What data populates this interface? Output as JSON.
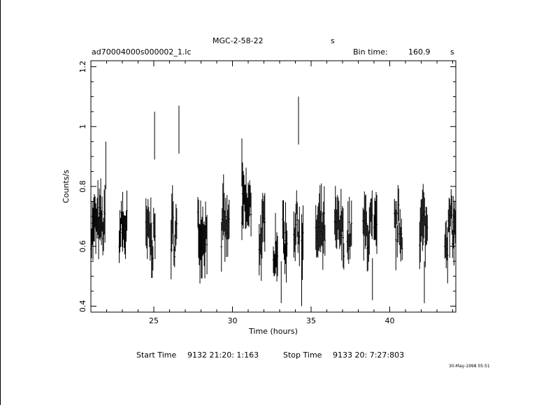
{
  "header": {
    "source_name": "MGC-2-58-22",
    "source_suffix": "s",
    "file_name": "ad70004000s000002_1.lc",
    "bin_time_label": "Bin time:",
    "bin_time_value": "160.9",
    "bin_time_unit": "s"
  },
  "footer": {
    "start_label": "Start Time",
    "start_value": "9132 21:20: 1:163",
    "stop_label": "Stop Time",
    "stop_value": "9133 20: 7:27:803",
    "date_stamp": "30-May-1998 05:51"
  },
  "chart_data": {
    "type": "scatter",
    "xlabel": "Time (hours)",
    "ylabel": "Counts/s",
    "xlim": [
      21.0,
      44.2
    ],
    "ylim": [
      0.38,
      1.22
    ],
    "xticks": [
      25,
      30,
      35,
      40
    ],
    "yticks": [
      0.4,
      0.6,
      0.8,
      1,
      1.2
    ],
    "grid": false,
    "error_bars": true,
    "segments": [
      [
        21.0,
        21.9,
        0.66
      ],
      [
        22.8,
        23.3,
        0.66
      ],
      [
        24.5,
        25.1,
        0.63
      ],
      [
        26.1,
        26.5,
        0.64
      ],
      [
        27.8,
        28.4,
        0.66
      ],
      [
        29.3,
        29.8,
        0.65
      ],
      [
        30.6,
        31.2,
        0.72
      ],
      [
        31.7,
        32.1,
        0.63
      ],
      [
        32.6,
        32.9,
        0.62
      ],
      [
        33.2,
        33.5,
        0.62
      ],
      [
        33.9,
        34.3,
        0.68
      ],
      [
        34.4,
        34.5,
        0.58
      ],
      [
        35.3,
        35.9,
        0.64
      ],
      [
        36.5,
        37.1,
        0.64
      ],
      [
        37.3,
        37.6,
        0.63
      ],
      [
        38.3,
        38.9,
        0.65
      ],
      [
        39.0,
        39.2,
        0.62
      ],
      [
        40.3,
        40.8,
        0.66
      ],
      [
        41.9,
        42.4,
        0.66
      ],
      [
        43.5,
        44.2,
        0.66
      ]
    ],
    "spikes": [
      [
        25.05,
        1.05
      ],
      [
        26.6,
        1.07
      ],
      [
        34.2,
        1.1
      ],
      [
        30.6,
        0.96
      ],
      [
        21.95,
        0.95
      ],
      [
        33.1,
        0.41
      ],
      [
        34.4,
        0.4
      ],
      [
        38.9,
        0.42
      ],
      [
        42.2,
        0.41
      ]
    ]
  }
}
